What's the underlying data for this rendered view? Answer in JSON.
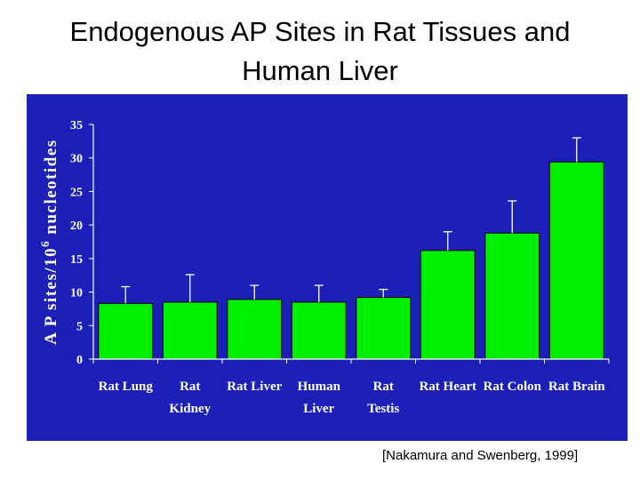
{
  "slide": {
    "title_line1": "Endogenous AP Sites in Rat Tissues and",
    "title_line2": "Human Liver",
    "citation": "[Nakamura and Swenberg, 1999]"
  },
  "colors": {
    "panel_background": "#1c20b8",
    "bar_fill": "#00ee00",
    "axis_text": "#ffffff"
  },
  "chart_data": {
    "type": "bar",
    "title": "",
    "ylabel": "A P sites/10⁶ nucleotides",
    "xlabel": "",
    "categories": [
      [
        "Rat Lung"
      ],
      [
        "Rat",
        "Kidney"
      ],
      [
        "Rat Liver"
      ],
      [
        "Human",
        "Liver"
      ],
      [
        "Rat",
        "Testis"
      ],
      [
        "Rat Heart"
      ],
      [
        "Rat Colon"
      ],
      [
        "Rat Brain"
      ]
    ],
    "values": [
      8.3,
      8.5,
      8.9,
      8.5,
      9.2,
      16.2,
      18.8,
      29.4
    ],
    "error_upper": [
      10.8,
      12.6,
      11.0,
      11.0,
      10.4,
      19.0,
      23.6,
      33.0
    ],
    "ylim": [
      0,
      35
    ],
    "yticks": [
      0,
      5,
      10,
      15,
      20,
      25,
      30,
      35
    ],
    "grid": false,
    "legend": "none"
  }
}
